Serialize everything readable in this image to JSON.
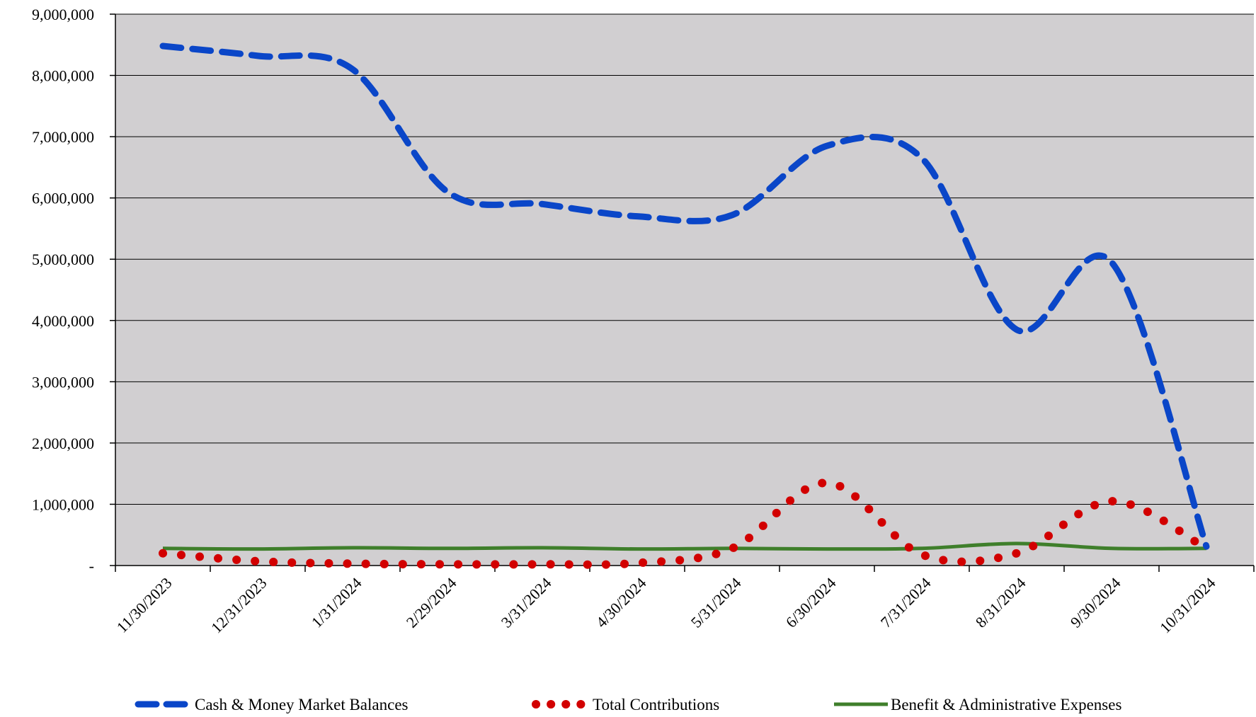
{
  "chart_data": {
    "type": "line",
    "title": "",
    "xlabel": "",
    "ylabel": "",
    "categories": [
      "11/30/2023",
      "12/31/2023",
      "1/31/2024",
      "2/29/2024",
      "3/31/2024",
      "4/30/2024",
      "5/31/2024",
      "6/30/2024",
      "7/31/2024",
      "8/31/2024",
      "9/30/2024",
      "10/31/2024"
    ],
    "ylim": [
      0,
      9000000
    ],
    "yticks": [
      0,
      1000000,
      2000000,
      3000000,
      4000000,
      5000000,
      6000000,
      7000000,
      8000000,
      9000000
    ],
    "ytick_labels": [
      "-",
      "1,000,000",
      "2,000,000",
      "3,000,000",
      "4,000,000",
      "5,000,000",
      "6,000,000",
      "7,000,000",
      "8,000,000",
      "9,000,000"
    ],
    "grid": true,
    "plot_background": "#d1cfd1",
    "legend_position": "bottom",
    "series": [
      {
        "name": "Cash & Money Market Balances",
        "color": "#0a46c8",
        "style": "dashed",
        "values": [
          8480000,
          8320000,
          8100000,
          6100000,
          5900000,
          5700000,
          5720000,
          6850000,
          6650000,
          3850000,
          4950000,
          310000
        ]
      },
      {
        "name": "Total Contributions",
        "color": "#d20000",
        "style": "dotted",
        "values": [
          200000,
          70000,
          30000,
          20000,
          20000,
          40000,
          280000,
          1350000,
          180000,
          200000,
          1050000,
          280000
        ]
      },
      {
        "name": "Benefit & Administrative Expenses",
        "color": "#3f7f2b",
        "style": "solid",
        "values": [
          280000,
          270000,
          290000,
          280000,
          290000,
          270000,
          280000,
          270000,
          280000,
          360000,
          280000,
          280000
        ]
      }
    ]
  }
}
